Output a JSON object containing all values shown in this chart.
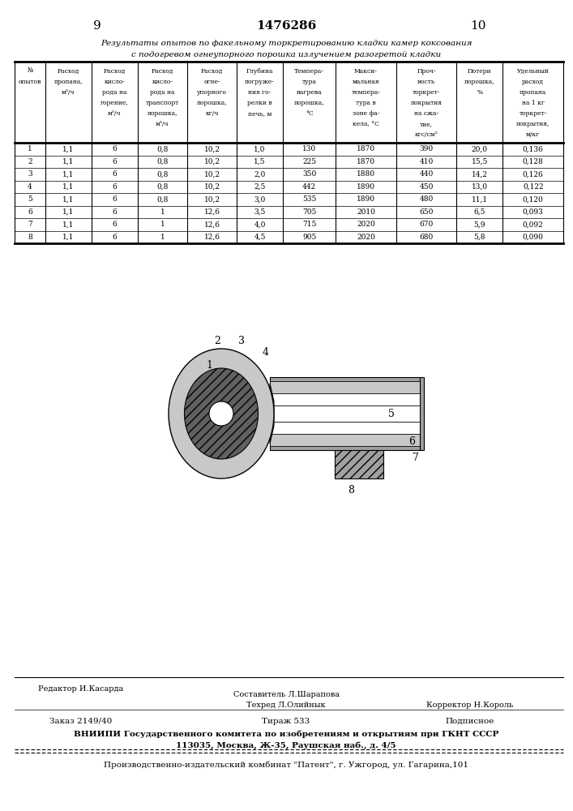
{
  "page_number_left": "9",
  "patent_number": "1476286",
  "page_number_right": "10",
  "title_line1": "Результаты опытов по факельному торкретированию кладки камер коксования",
  "title_line2": "с подогревом огнеупорного порошка излучением разогретой кладки",
  "col_headers": [
    "№\nопытов",
    "Расход\nпропана,\nм³/ч",
    "Расход\nкисло-\nрода на\nгорение,\nм³/ч",
    "Расход\nкисло-\nрода на\nтранспорт\nпорошка,\nм³/ч",
    "Расход\nогне-\nупорного\nпорошка,\nкг/ч",
    "Глубина\nпогруже-\nния го-\nрелки в\nпечь, м",
    "Темпера-\nтура\nнагрева\nпорошка,\n°С",
    "Макси-\nмальная\nтемпера-\nтура в\nзоне фа-\nкела, °С",
    "Проч-\nность\nторкрет-\nпокрытия\nна сжа-\nтие,\nкгс/см²",
    "Потери\nпорошка,\n%",
    "Удельный\nрасход\nпропана\nна 1 кг\nторкрет-\nпокрытия,\nм/кг"
  ],
  "rows": [
    [
      "1",
      "1,1",
      "6",
      "0,8",
      "10,2",
      "1,0",
      "130",
      "1870",
      "390",
      "20,0",
      "0,136"
    ],
    [
      "2",
      "1,1",
      "6",
      "0,8",
      "10,2",
      "1,5",
      "225",
      "1870",
      "410",
      "15,5",
      "0,128"
    ],
    [
      "3",
      "1,1",
      "6",
      "0,8",
      "10,2",
      "2,0",
      "350",
      "1880",
      "440",
      "14,2",
      "0,126"
    ],
    [
      "4",
      "1,1",
      "6",
      "0,8",
      "10,2",
      "2,5",
      "442",
      "1890",
      "450",
      "13,0",
      "0,122"
    ],
    [
      "5",
      "1,1",
      "6",
      "0,8",
      "10,2",
      "3,0",
      "535",
      "1890",
      "480",
      "11,1",
      "0,120"
    ],
    [
      "6",
      "1,1",
      "6",
      "1",
      "12,6",
      "3,5",
      "705",
      "2010",
      "650",
      "6,5",
      "0,093"
    ],
    [
      "7",
      "1,1",
      "6",
      "1",
      "12,6",
      "4,0",
      "715",
      "2020",
      "670",
      "5,9",
      "0,092"
    ],
    [
      "8",
      "1,1",
      "6",
      "1",
      "12,6",
      "4,5",
      "905",
      "2020",
      "680",
      "5,8",
      "0,090"
    ]
  ],
  "footer_editor": "Редактор И.Касарда",
  "footer_composer": "Составитель Л.Шарапова",
  "footer_techred": "Техред Л.Олийнык",
  "footer_corrector": "Корректор Н.Король",
  "footer_order": "Заказ 2149/40",
  "footer_tirazh": "Тираж 533",
  "footer_podpisnoe": "Подписное",
  "footer_vnipi": "ВНИИПИ Государственного комитета по изобретениям и открытиям при ГКНТ СССР",
  "footer_address": "113035, Москва, Ж-35, Раушская наб., д. 4/5",
  "footer_production": "Производственно-издательский комбинат \"Патент\", г. Ужгород, ул. Гагарина,101",
  "bg_color": "#ffffff",
  "text_color": "#000000"
}
